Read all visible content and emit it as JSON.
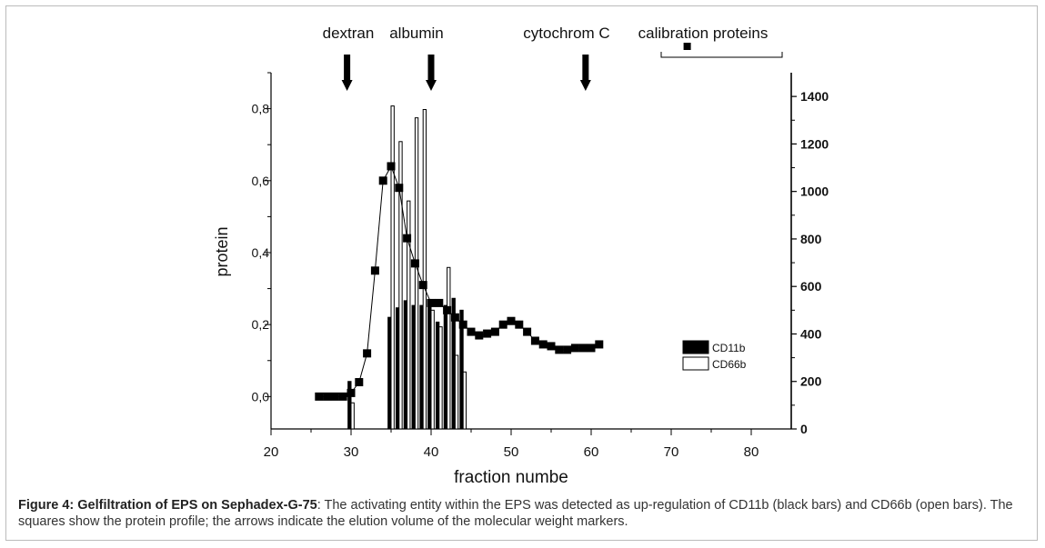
{
  "caption": {
    "label": "Figure 4: Gelfiltration of EPS on Sephadex-G-75",
    "text": ": The activating entity within the EPS was detected as up-regulation of CD11b (black bars) and CD66b (open bars). The squares show the protein profile; the arrows indicate the elution volume of the molecular weight markers."
  },
  "chart_data": {
    "type": "bar",
    "xlabel": "fraction numbe",
    "ylabel": "protein",
    "xlim": [
      20,
      85
    ],
    "xticks": [
      "20",
      "30",
      "40",
      "50",
      "60",
      "70",
      "80"
    ],
    "ylim_left": [
      -0.09,
      0.9
    ],
    "yticks_left": [
      "0,0",
      "0,2",
      "0,4",
      "0,6",
      "0,8"
    ],
    "ylim_right": [
      0,
      1500
    ],
    "yticks_right": [
      "0",
      "200",
      "400",
      "600",
      "800",
      "1000",
      "1200",
      "1400"
    ],
    "grid": false,
    "legend_position": "right",
    "series": [
      {
        "name": "CD11b",
        "kind": "bar",
        "axis": "right",
        "color": "#000000",
        "x": [
          30,
          35,
          36,
          37,
          38,
          39,
          40,
          41,
          42,
          43,
          44
        ],
        "values": [
          200,
          470,
          510,
          540,
          520,
          520,
          530,
          450,
          520,
          550,
          500
        ]
      },
      {
        "name": "CD66b",
        "kind": "bar",
        "axis": "right",
        "color": "#ffffff",
        "x": [
          30,
          35,
          36,
          37,
          38,
          39,
          40,
          41,
          42,
          43,
          44
        ],
        "values": [
          110,
          1360,
          1210,
          960,
          1310,
          1345,
          500,
          430,
          680,
          310,
          240
        ]
      },
      {
        "name": "protein",
        "kind": "line-markers",
        "axis": "left",
        "color": "#000000",
        "x": [
          26,
          27,
          28,
          29,
          30,
          31,
          32,
          33,
          34,
          35,
          36,
          37,
          38,
          39,
          40,
          41,
          42,
          43,
          44,
          45,
          46,
          47,
          48,
          49,
          50,
          51,
          52,
          53,
          54,
          55,
          56,
          57,
          58,
          59,
          60,
          61
        ],
        "values": [
          0.0,
          0.0,
          0.0,
          0.0,
          0.01,
          0.04,
          0.12,
          0.35,
          0.6,
          0.64,
          0.58,
          0.44,
          0.37,
          0.31,
          0.26,
          0.26,
          0.24,
          0.22,
          0.2,
          0.18,
          0.17,
          0.175,
          0.18,
          0.2,
          0.21,
          0.2,
          0.18,
          0.155,
          0.145,
          0.14,
          0.13,
          0.13,
          0.135,
          0.135,
          0.135,
          0.145
        ]
      }
    ],
    "markers": {
      "labels": [
        {
          "text": "dextran",
          "x": 30
        },
        {
          "text": "albumin",
          "x": 41
        },
        {
          "text": "cytochrom C",
          "x": 56.5
        }
      ],
      "arrows": [
        29.5,
        40,
        59.3
      ],
      "calibration": {
        "text": "calibration proteins",
        "from": 68,
        "to": 84,
        "square_x": 72
      }
    }
  }
}
